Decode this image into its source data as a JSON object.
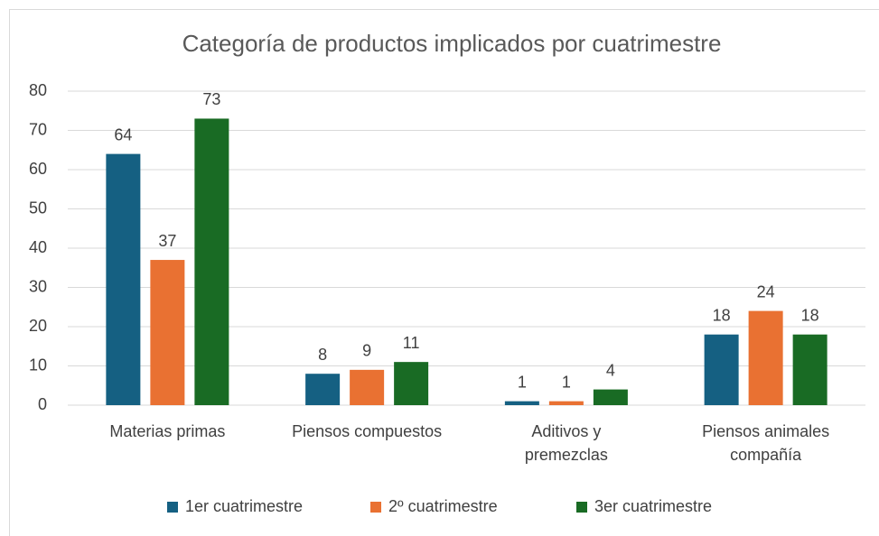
{
  "chart_data": {
    "type": "bar",
    "title": "Categoría de productos implicados por cuatrimestre",
    "categories": [
      "Materias primas",
      "Piensos compuestos",
      "Aditivos y\npremezclas",
      "Piensos animales\ncompañía"
    ],
    "series": [
      {
        "name": "1er cuatrimestre",
        "color": "#156082",
        "values": [
          64,
          8,
          1,
          18
        ]
      },
      {
        "name": "2º cuatrimestre",
        "color": "#E97132",
        "values": [
          37,
          9,
          1,
          24
        ]
      },
      {
        "name": "3er cuatrimestre",
        "color": "#196B24",
        "values": [
          73,
          11,
          4,
          18
        ]
      }
    ],
    "ylim": [
      0,
      80
    ],
    "yticks": [
      0,
      10,
      20,
      30,
      40,
      50,
      60,
      70,
      80
    ],
    "grid": true,
    "legend": "bottom"
  }
}
